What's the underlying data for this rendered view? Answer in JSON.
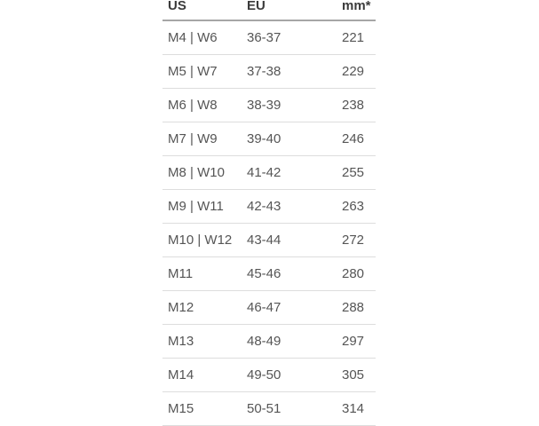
{
  "table": {
    "columns": [
      "US",
      "EU",
      "mm*"
    ],
    "rows": [
      {
        "us": "M4 | W6",
        "eu": "36-37",
        "mm": "221"
      },
      {
        "us": "M5 | W7",
        "eu": "37-38",
        "mm": "229"
      },
      {
        "us": "M6 | W8",
        "eu": "38-39",
        "mm": "238"
      },
      {
        "us": "M7 | W9",
        "eu": "39-40",
        "mm": "246"
      },
      {
        "us": "M8 | W10",
        "eu": "41-42",
        "mm": "255"
      },
      {
        "us": "M9 | W11",
        "eu": "42-43",
        "mm": "263"
      },
      {
        "us": "M10 | W12",
        "eu": "43-44",
        "mm": "272"
      },
      {
        "us": "M11",
        "eu": "45-46",
        "mm": "280"
      },
      {
        "us": "M12",
        "eu": "46-47",
        "mm": "288"
      },
      {
        "us": "M13",
        "eu": "48-49",
        "mm": "297"
      },
      {
        "us": "M14",
        "eu": "49-50",
        "mm": "305"
      },
      {
        "us": "M15",
        "eu": "50-51",
        "mm": "314"
      }
    ]
  },
  "colors": {
    "background": "#ffffff",
    "header_text": "#3b3b3b",
    "body_text": "#555555",
    "header_border": "#a6a6a6",
    "row_border": "#dddddd"
  }
}
